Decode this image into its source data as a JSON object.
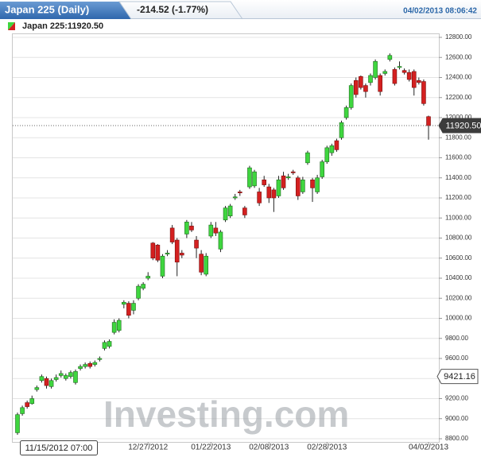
{
  "chart_data": {
    "type": "candlestick",
    "title": "Japan 225 (Daily)",
    "change": "-214.52 (-1.77%)",
    "timestamp": "04/02/2013 08:06:42",
    "legend_label": "Japan 225:11920.50",
    "watermark": "Investing.com",
    "crosshair_label": "11/15/2012 07:00",
    "up_color": "#3fd63f",
    "down_color": "#d42020",
    "ylim": [
      8800,
      12800
    ],
    "yticks": [
      {
        "value": 8800,
        "label": "8800.00"
      },
      {
        "value": 9000,
        "label": "9000.00"
      },
      {
        "value": 9200,
        "label": "9200.00"
      },
      {
        "value": 9400,
        "label": "9400.00"
      },
      {
        "value": 9600,
        "label": "9600.00"
      },
      {
        "value": 9800,
        "label": "9800.00"
      },
      {
        "value": 10000,
        "label": "10000.00"
      },
      {
        "value": 10200,
        "label": "10200.00"
      },
      {
        "value": 10400,
        "label": "10400.00"
      },
      {
        "value": 10600,
        "label": "10600.00"
      },
      {
        "value": 10800,
        "label": "10800.00"
      },
      {
        "value": 11000,
        "label": "11000.00"
      },
      {
        "value": 11200,
        "label": "11200.00"
      },
      {
        "value": 11400,
        "label": "11400.00"
      },
      {
        "value": 11600,
        "label": "11600.00"
      },
      {
        "value": 11800,
        "label": "11800.00"
      },
      {
        "value": 12000,
        "label": "12000.00"
      },
      {
        "value": 12200,
        "label": "12200.00"
      },
      {
        "value": 12400,
        "label": "12400.00"
      },
      {
        "value": 12600,
        "label": "12600.00"
      },
      {
        "value": 12800,
        "label": "12800.00"
      }
    ],
    "grid": true,
    "price_tags": [
      {
        "value": 11920.5,
        "label": "11920.50"
      },
      {
        "value": 9421.16,
        "label": "9421.16"
      }
    ],
    "categories": [
      null,
      null,
      null,
      null,
      null,
      null,
      null,
      null,
      null,
      null,
      null,
      null,
      null,
      null,
      null,
      null,
      null,
      null,
      null,
      null,
      null,
      null,
      null,
      null,
      null,
      null,
      null,
      "12/27/2012",
      null,
      null,
      null,
      null,
      null,
      null,
      null,
      null,
      null,
      null,
      null,
      null,
      "01/22/2013",
      null,
      null,
      null,
      null,
      null,
      null,
      null,
      null,
      null,
      null,
      null,
      "02/08/2013",
      null,
      null,
      null,
      null,
      null,
      null,
      null,
      null,
      null,
      null,
      null,
      "02/28/2013",
      null,
      null,
      null,
      null,
      null,
      null,
      null,
      null,
      null,
      null,
      null,
      null,
      null,
      null,
      null,
      null,
      null,
      null,
      null,
      null,
      "04/02/2013"
    ],
    "open": [
      8860,
      9050,
      9160,
      9150,
      9290,
      9380,
      9400,
      9320,
      9390,
      9430,
      9400,
      9420,
      9360,
      9500,
      9520,
      9550,
      9540,
      9590,
      9700,
      9720,
      9860,
      9880,
      10140,
      10150,
      10080,
      10200,
      10300,
      10400,
      10750,
      10730,
      10420,
      10640,
      10900,
      10780,
      10650,
      10840,
      10920,
      10780,
      10640,
      10440,
      10820,
      10900,
      10690,
      10980,
      11020,
      11200,
      11260,
      11100,
      11310,
      11320,
      11260,
      11380,
      11310,
      11280,
      11220,
      11420,
      11400,
      11460,
      11400,
      11260,
      11550,
      11380,
      11260,
      11410,
      11560,
      11650,
      11770,
      11800,
      12000,
      12100,
      12370,
      12410,
      12320,
      12350,
      12400,
      12420,
      12440,
      12580,
      12480,
      12500,
      12470,
      12450,
      12460,
      12370,
      12360,
      12010
    ],
    "high": [
      9060,
      9130,
      9180,
      9230,
      9330,
      9440,
      9420,
      9400,
      9440,
      9480,
      9450,
      9480,
      9490,
      9540,
      9560,
      9570,
      9580,
      9620,
      9780,
      9790,
      9990,
      10000,
      10180,
      10170,
      10180,
      10340,
      10360,
      10460,
      10760,
      10740,
      10640,
      10680,
      10930,
      10800,
      10680,
      10980,
      10960,
      10820,
      10680,
      10650,
      10960,
      10960,
      10880,
      11120,
      11140,
      11240,
      11280,
      11120,
      11520,
      11480,
      11300,
      11420,
      11340,
      11300,
      11420,
      11460,
      11440,
      11480,
      11420,
      11410,
      11670,
      11400,
      11430,
      11580,
      11720,
      11740,
      11790,
      11970,
      12120,
      12340,
      12400,
      12420,
      12340,
      12440,
      12580,
      12440,
      12480,
      12640,
      12500,
      12560,
      12490,
      12480,
      12480,
      12400,
      12380,
      12020
    ],
    "low": [
      8840,
      9030,
      9100,
      9140,
      9270,
      9360,
      9300,
      9300,
      9370,
      9410,
      9380,
      9400,
      9340,
      9480,
      9500,
      9500,
      9520,
      9570,
      9680,
      9700,
      9840,
      9860,
      10100,
      10000,
      10040,
      10180,
      10280,
      10380,
      10580,
      10560,
      10400,
      10620,
      10740,
      10420,
      10600,
      10800,
      10860,
      10600,
      10430,
      10420,
      10800,
      10820,
      10660,
      10960,
      11000,
      11180,
      11220,
      11000,
      11290,
      11300,
      11120,
      11310,
      11150,
      11060,
      11200,
      11280,
      11380,
      11430,
      11180,
      11240,
      11530,
      11160,
      11240,
      11390,
      11540,
      11620,
      11660,
      11780,
      11980,
      12080,
      12200,
      12280,
      12200,
      12320,
      12380,
      12220,
      12420,
      12560,
      12320,
      12480,
      12430,
      12360,
      12220,
      12330,
      12120,
      11780
    ],
    "close": [
      9040,
      9110,
      9120,
      9200,
      9310,
      9420,
      9330,
      9380,
      9410,
      9450,
      9430,
      9460,
      9470,
      9520,
      9540,
      9520,
      9560,
      9600,
      9760,
      9770,
      9960,
      9980,
      10160,
      10030,
      10150,
      10320,
      10340,
      10420,
      10600,
      10580,
      10620,
      10650,
      10760,
      10560,
      10630,
      10960,
      10880,
      10700,
      10460,
      10620,
      10930,
      10850,
      10860,
      11100,
      11120,
      11210,
      11250,
      11030,
      11500,
      11460,
      11150,
      11330,
      11200,
      11200,
      11380,
      11300,
      11410,
      11450,
      11220,
      11380,
      11650,
      11300,
      11400,
      11560,
      11700,
      11720,
      11680,
      11950,
      12100,
      12320,
      12230,
      12300,
      12260,
      12420,
      12560,
      12260,
      12460,
      12620,
      12340,
      12510,
      12450,
      12380,
      12300,
      12350,
      12140,
      11920.5
    ]
  }
}
